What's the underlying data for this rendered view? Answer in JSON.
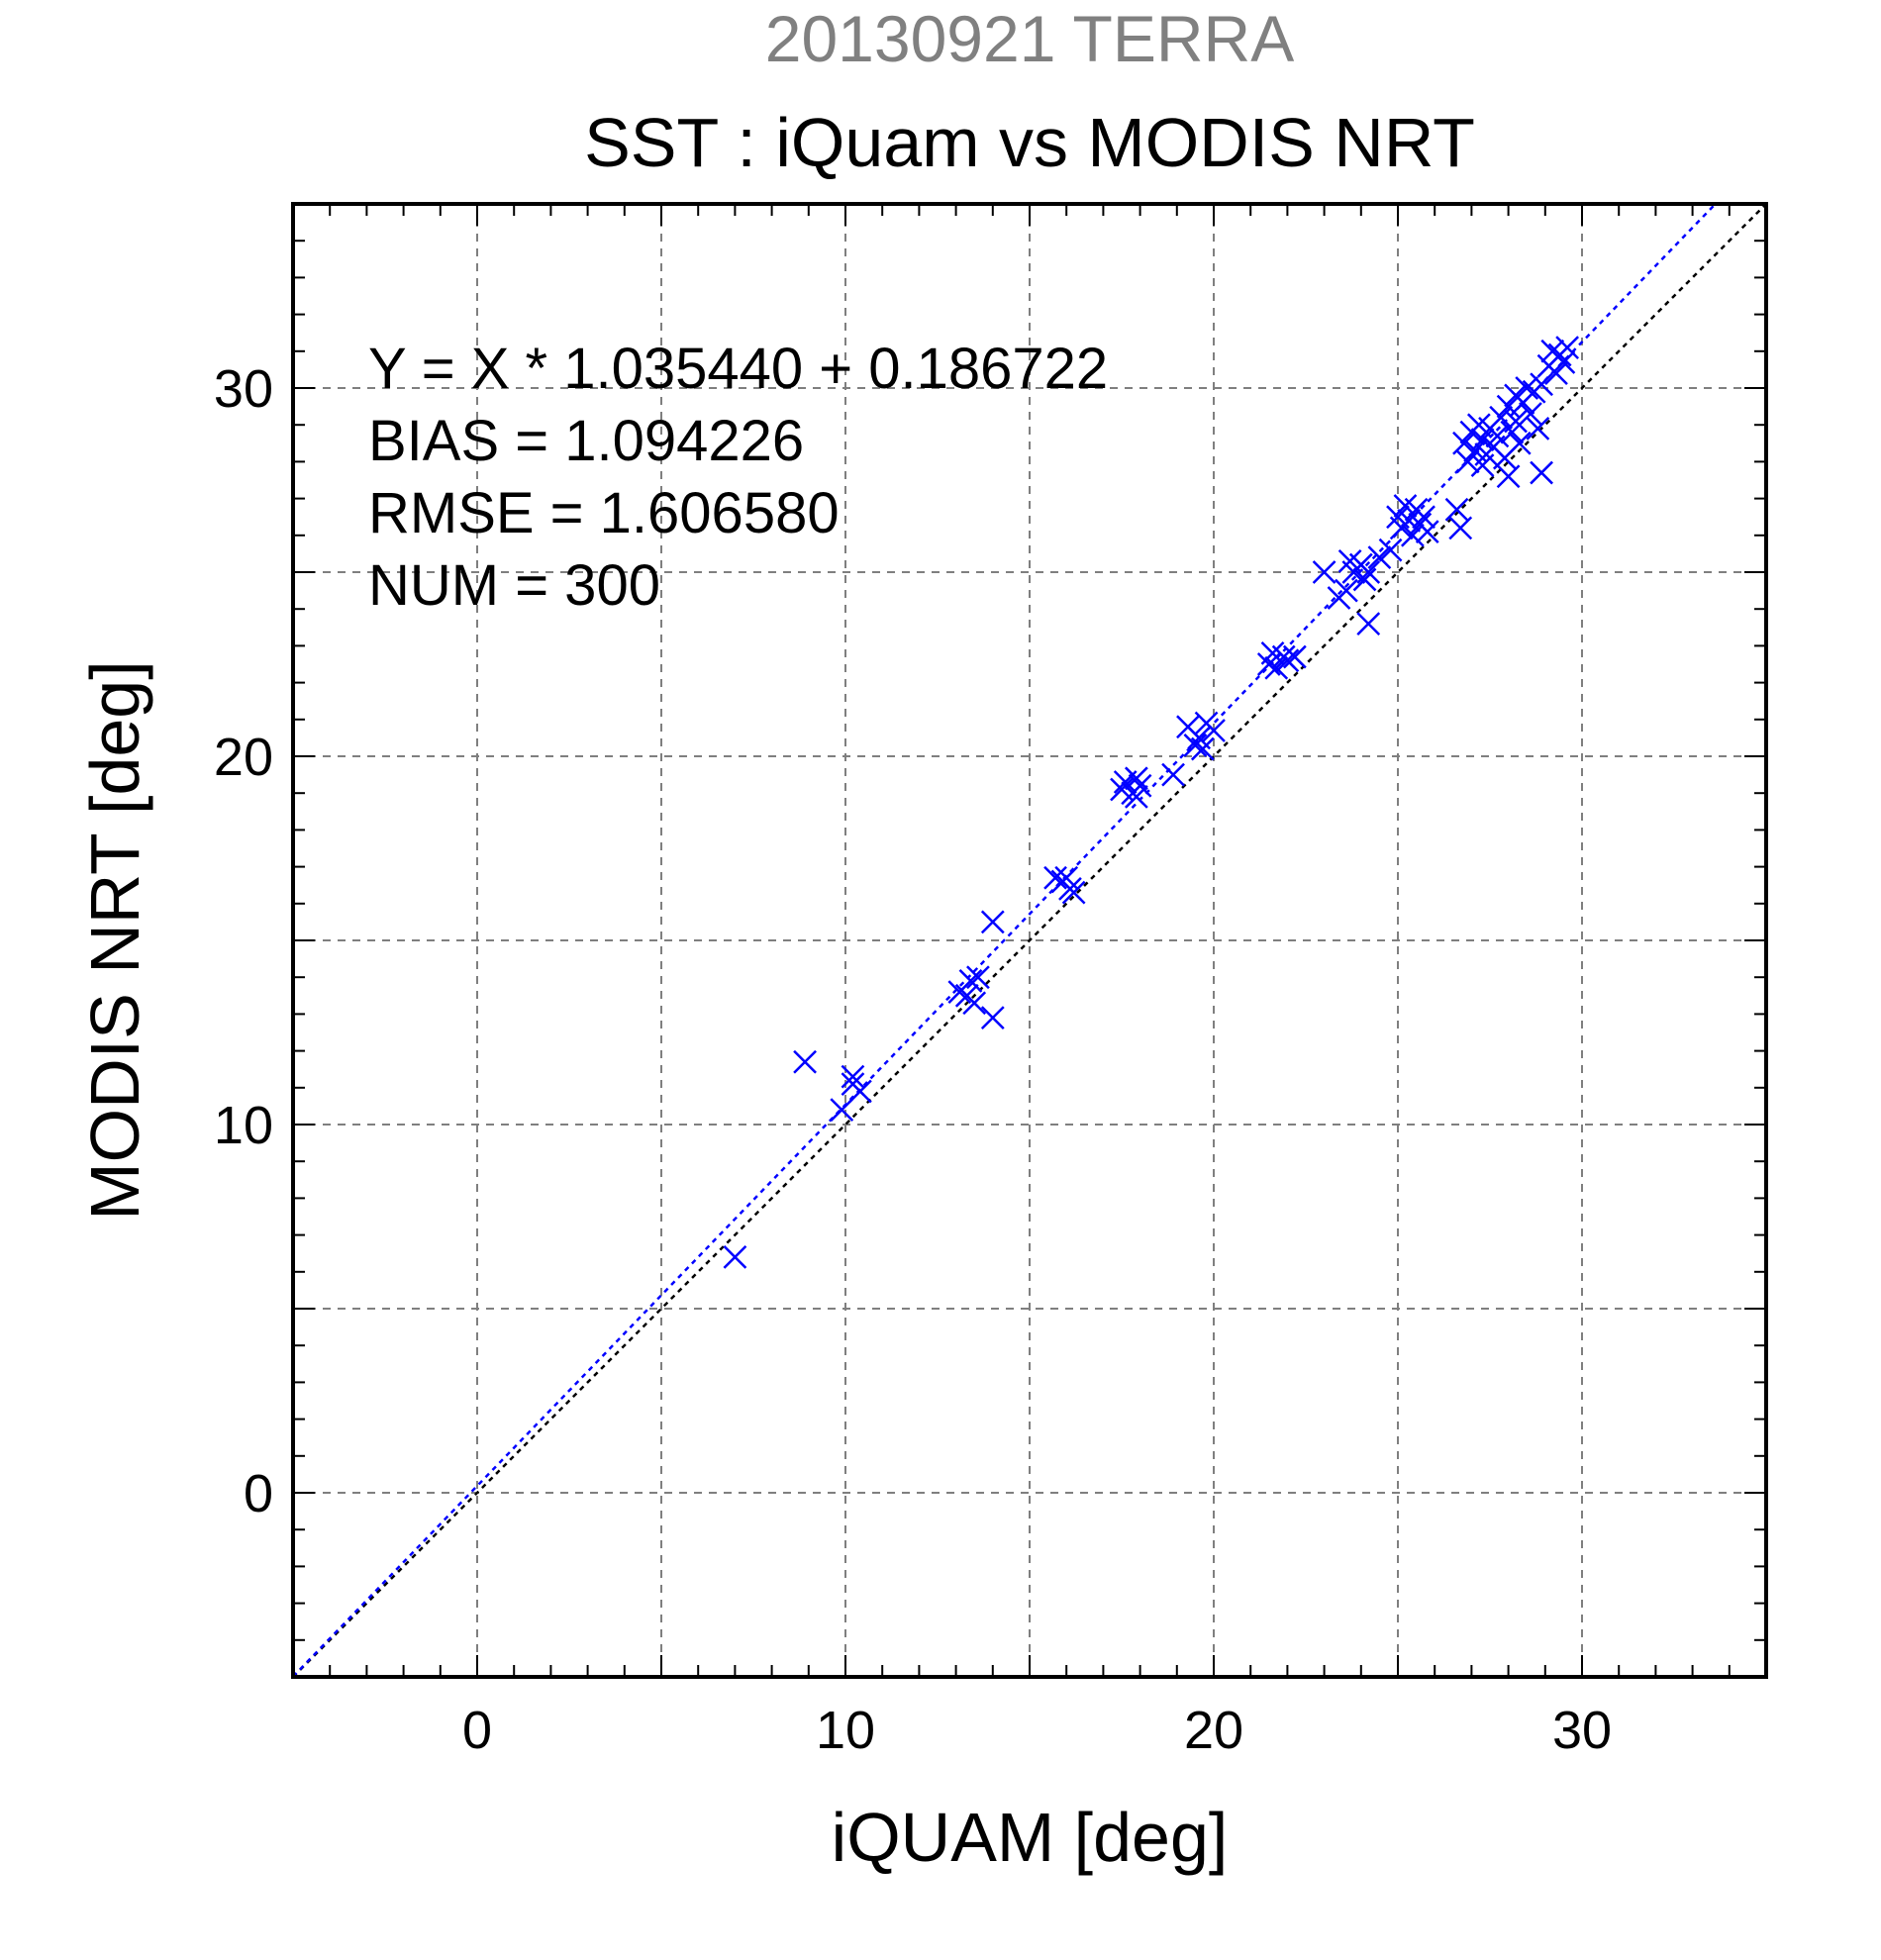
{
  "chart_data": {
    "type": "scatter",
    "suptitle": "20130921 TERRA",
    "title": "SST : iQuam vs MODIS NRT",
    "xlabel": "iQUAM [deg]",
    "ylabel": "MODIS NRT [deg]",
    "xlim": [
      -5,
      35
    ],
    "ylim": [
      -5,
      35
    ],
    "xticks": [
      0,
      10,
      20,
      30
    ],
    "yticks": [
      0,
      10,
      20,
      30
    ],
    "minor_step": 1,
    "grid": true,
    "grid_step": 5,
    "stats": [
      "Y = X * 1.035440 + 0.186722",
      "BIAS = 1.094226",
      "RMSE = 1.606580",
      "NUM = 300"
    ],
    "regression": {
      "slope": 1.03544,
      "intercept": 0.186722
    },
    "colors": {
      "suptitle": "#808080",
      "markers": "#0000ff",
      "fit_line": "#0000ff",
      "identity_line": "#000000",
      "grid": "#7f7f7f"
    },
    "marker": "x",
    "points": [
      [
        7.0,
        6.4
      ],
      [
        8.9,
        11.7
      ],
      [
        9.9,
        10.4
      ],
      [
        10.2,
        11.1
      ],
      [
        10.2,
        11.3
      ],
      [
        10.4,
        10.9
      ],
      [
        13.1,
        13.6
      ],
      [
        13.3,
        13.5
      ],
      [
        13.4,
        13.9
      ],
      [
        13.5,
        13.3
      ],
      [
        13.6,
        14.0
      ],
      [
        14.0,
        15.5
      ],
      [
        14.0,
        12.9
      ],
      [
        15.7,
        16.7
      ],
      [
        15.9,
        16.6
      ],
      [
        16.0,
        16.7
      ],
      [
        16.1,
        16.4
      ],
      [
        16.2,
        16.3
      ],
      [
        17.5,
        19.1
      ],
      [
        17.6,
        19.3
      ],
      [
        17.8,
        19.0
      ],
      [
        17.9,
        19.4
      ],
      [
        17.9,
        18.9
      ],
      [
        18.0,
        19.2
      ],
      [
        18.9,
        19.5
      ],
      [
        19.3,
        20.8
      ],
      [
        19.5,
        20.3
      ],
      [
        19.6,
        20.5
      ],
      [
        19.7,
        20.2
      ],
      [
        19.8,
        20.9
      ],
      [
        20.0,
        20.7
      ],
      [
        21.5,
        22.5
      ],
      [
        21.6,
        22.8
      ],
      [
        21.7,
        22.4
      ],
      [
        21.9,
        22.7
      ],
      [
        22.0,
        22.6
      ],
      [
        22.2,
        22.7
      ],
      [
        23.0,
        25.0
      ],
      [
        23.4,
        24.3
      ],
      [
        23.6,
        24.5
      ],
      [
        23.7,
        25.3
      ],
      [
        23.8,
        25.0
      ],
      [
        24.0,
        25.2
      ],
      [
        24.1,
        24.8
      ],
      [
        24.2,
        25.0
      ],
      [
        24.2,
        23.6
      ],
      [
        24.5,
        25.4
      ],
      [
        24.8,
        25.6
      ],
      [
        25.0,
        26.5
      ],
      [
        25.1,
        26.2
      ],
      [
        25.2,
        26.8
      ],
      [
        25.3,
        26.4
      ],
      [
        25.4,
        26.0
      ],
      [
        25.5,
        26.7
      ],
      [
        25.6,
        26.3
      ],
      [
        25.7,
        26.5
      ],
      [
        25.8,
        26.1
      ],
      [
        26.6,
        26.7
      ],
      [
        26.7,
        26.2
      ],
      [
        26.8,
        28.5
      ],
      [
        26.9,
        28.0
      ],
      [
        27.0,
        28.8
      ],
      [
        27.1,
        28.3
      ],
      [
        27.2,
        29.0
      ],
      [
        27.3,
        27.9
      ],
      [
        27.3,
        28.6
      ],
      [
        27.4,
        28.2
      ],
      [
        27.5,
        28.9
      ],
      [
        27.6,
        28.4
      ],
      [
        27.7,
        28.7
      ],
      [
        27.8,
        29.2
      ],
      [
        27.9,
        28.1
      ],
      [
        28.0,
        29.5
      ],
      [
        28.0,
        27.6
      ],
      [
        28.1,
        28.8
      ],
      [
        28.2,
        29.8
      ],
      [
        28.2,
        29.1
      ],
      [
        28.3,
        28.5
      ],
      [
        28.4,
        29.6
      ],
      [
        28.5,
        30.0
      ],
      [
        28.6,
        29.3
      ],
      [
        28.7,
        29.9
      ],
      [
        28.8,
        28.9
      ],
      [
        28.9,
        30.1
      ],
      [
        28.9,
        27.7
      ],
      [
        29.1,
        30.6
      ],
      [
        29.2,
        31.0
      ],
      [
        29.3,
        30.4
      ],
      [
        29.4,
        30.9
      ],
      [
        29.5,
        30.7
      ],
      [
        29.6,
        31.1
      ]
    ]
  }
}
